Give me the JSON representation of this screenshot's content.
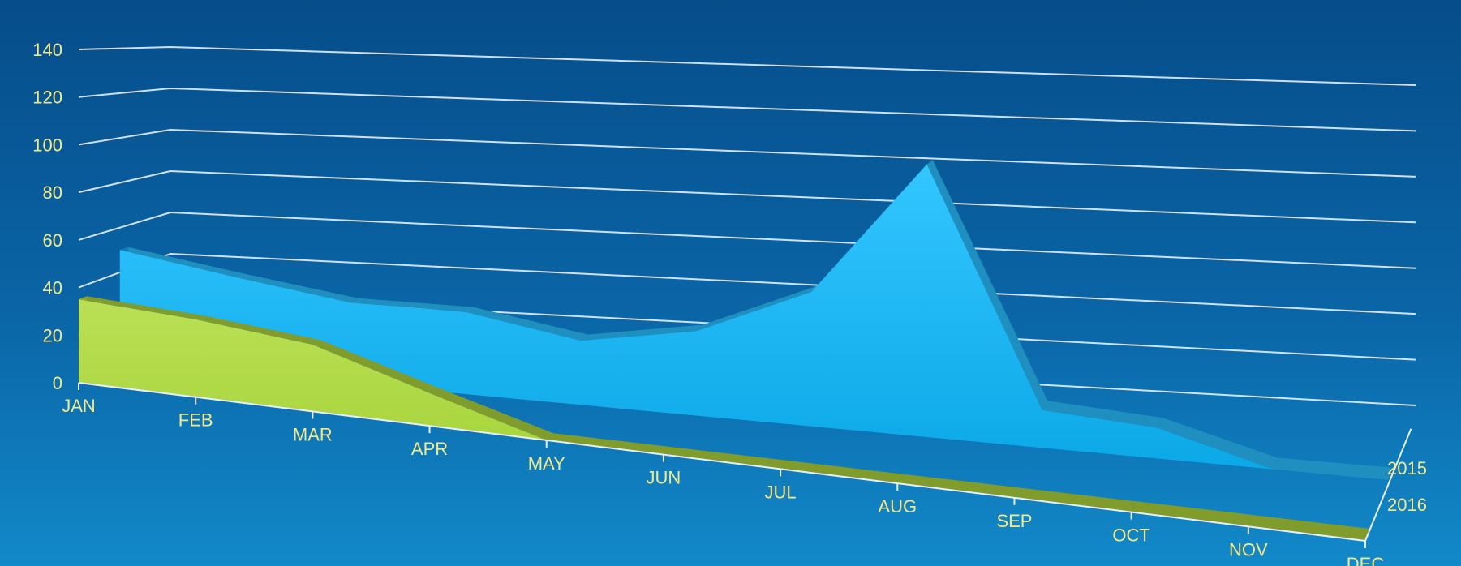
{
  "chart_data": {
    "type": "area",
    "view": "3d",
    "categories": [
      "JAN",
      "FEB",
      "MAR",
      "APR",
      "MAY",
      "JUN",
      "JUL",
      "AUG",
      "SEP",
      "OCT",
      "NOV",
      "DEC"
    ],
    "yticks": [
      "0",
      "20",
      "40",
      "60",
      "80",
      "100",
      "120",
      "140"
    ],
    "ylim": [
      0,
      140
    ],
    "grid": true,
    "series": [
      {
        "name": "2015",
        "color": "#1fb8ef",
        "values": [
          50,
          42,
          35,
          35,
          27,
          35,
          55,
          110,
          15,
          12,
          0,
          0
        ]
      },
      {
        "name": "2016",
        "color": "#a6d43c",
        "values": [
          35,
          32,
          27,
          13,
          0,
          0,
          0,
          0,
          0,
          0,
          0,
          0
        ]
      }
    ]
  }
}
